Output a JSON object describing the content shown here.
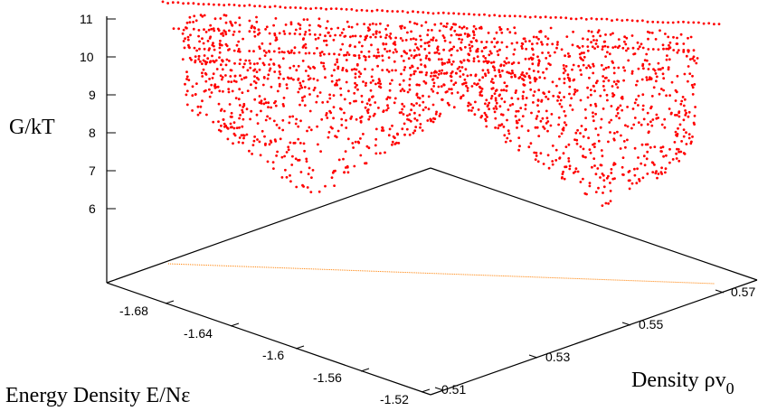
{
  "chart_data": {
    "type": "scatter",
    "projection": "3d",
    "zlabel": "G/kT",
    "xlabel": "Energy Density E/Nε",
    "ylabel_main": "Density ρv",
    "ylabel_sub": "0",
    "x_ticks": [
      "-1.68",
      "-1.64",
      "-1.6",
      "-1.56",
      "-1.52"
    ],
    "y_ticks": [
      "0.51",
      "0.53",
      "0.55",
      "0.57"
    ],
    "z_ticks": [
      "6",
      "7",
      "8",
      "9",
      "10",
      "11"
    ],
    "xlim": [
      -1.7,
      -1.52
    ],
    "ylim": [
      0.505,
      0.575
    ],
    "zlim": [
      6,
      11.2
    ],
    "grid": false,
    "colors": {
      "points": "#ff0000",
      "base_line": "#ff7f00",
      "axes": "#000000"
    },
    "surface": {
      "description": "free energy surface G/kT(E, rho) with two minima",
      "minima_G": 6.2,
      "maxima_G": 11.2,
      "left_basin_x_frac": 0.25,
      "right_basin_x_frac": 0.82,
      "saddle_G": 7.7
    }
  }
}
